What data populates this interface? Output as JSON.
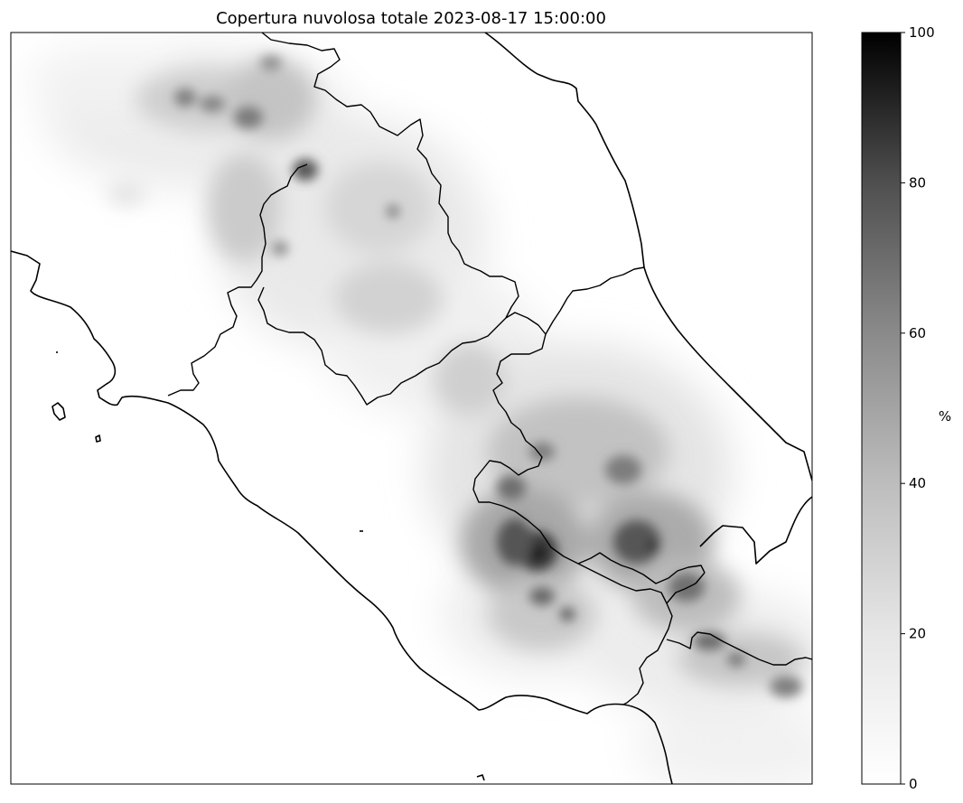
{
  "title": "Copertura nuvolosa totale 2023-08-17 15:00:00",
  "colorbar": {
    "label": "%",
    "ticks": [
      "0",
      "20",
      "40",
      "60",
      "80",
      "100"
    ],
    "min": 0,
    "max": 100,
    "colormap": "Greys",
    "color_low": "#ffffff",
    "color_high": "#000000"
  },
  "map": {
    "variable": "total cloud cover",
    "units": "%",
    "region": "Central Italy",
    "ocean_color": "#ffffff",
    "coastline_color": "#000000",
    "border_color": "#000000"
  }
}
